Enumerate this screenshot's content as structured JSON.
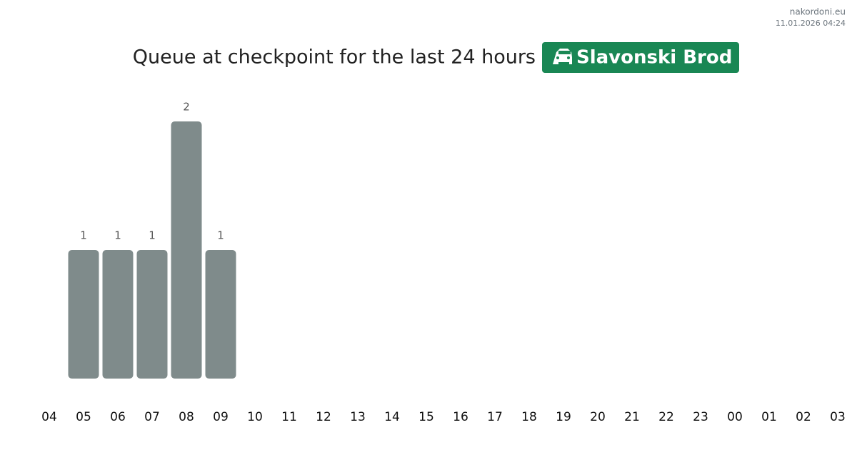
{
  "site": "nakordoni.eu",
  "timestamp": "11.01.2026 04:24",
  "chart_data": {
    "type": "bar",
    "title": "Queue at checkpoint for the last 24 hours",
    "checkpoint": "Slavonski Brod",
    "categories": [
      "04",
      "05",
      "06",
      "07",
      "08",
      "09",
      "10",
      "11",
      "12",
      "13",
      "14",
      "15",
      "16",
      "17",
      "18",
      "19",
      "20",
      "21",
      "22",
      "23",
      "00",
      "01",
      "02",
      "03"
    ],
    "values": [
      null,
      1,
      1,
      1,
      2,
      1,
      null,
      null,
      null,
      null,
      null,
      null,
      null,
      null,
      null,
      null,
      null,
      null,
      null,
      null,
      null,
      null,
      null,
      null
    ],
    "color": "#7f8b8b"
  }
}
